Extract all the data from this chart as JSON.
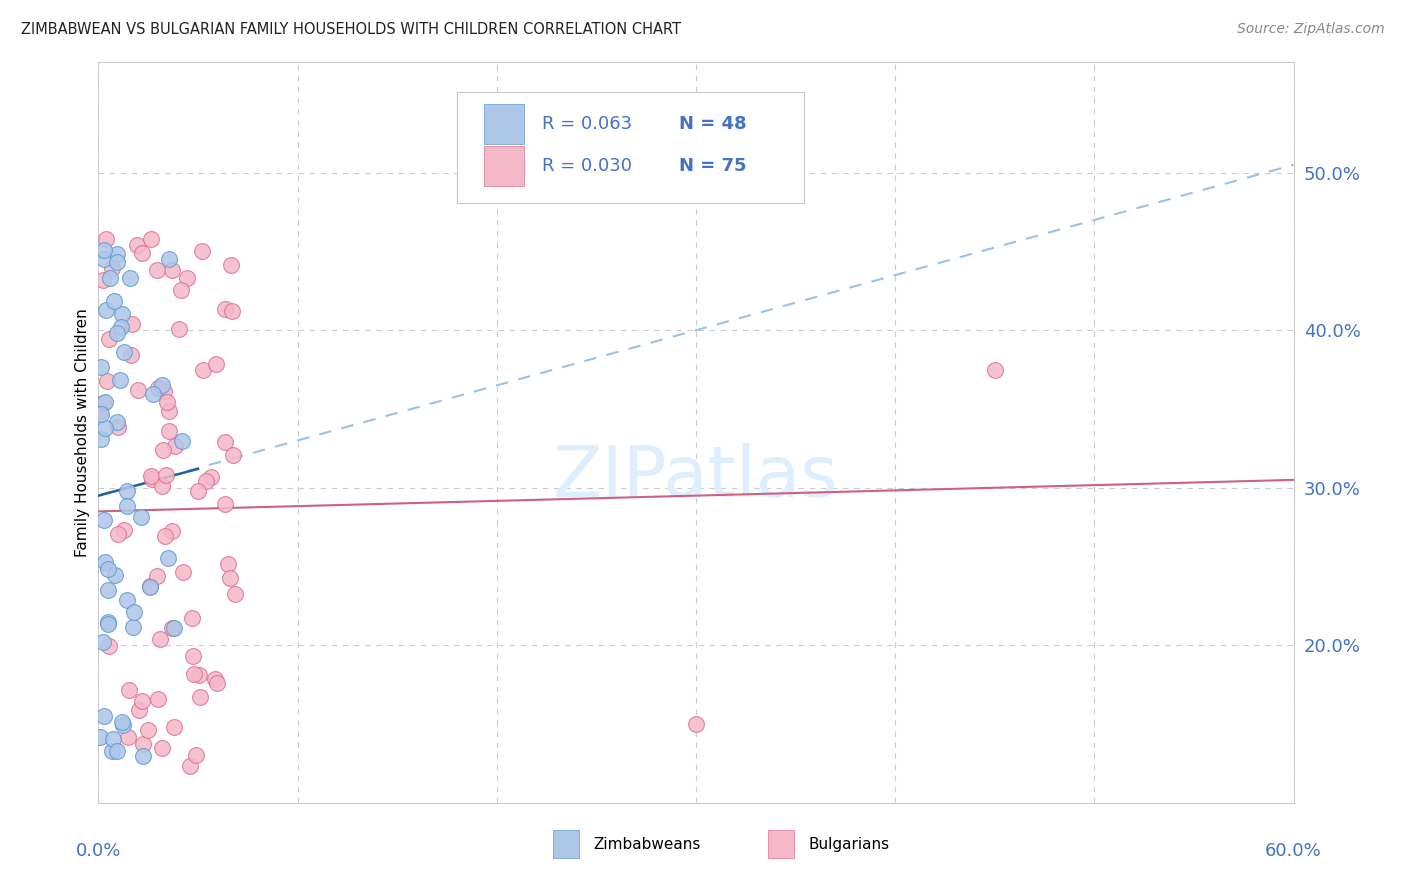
{
  "title": "ZIMBABWEAN VS BULGARIAN FAMILY HOUSEHOLDS WITH CHILDREN CORRELATION CHART",
  "source": "Source: ZipAtlas.com",
  "ylabel": "Family Households with Children",
  "zim_color": "#aec6e8",
  "zim_edge_color": "#5b9bd5",
  "bul_color": "#f4b8c8",
  "bul_edge_color": "#e07090",
  "trend_zim_dash_color": "#a0c0e0",
  "trend_zim_solid_color": "#2060a0",
  "trend_bul_color": "#d06080",
  "watermark_color": "#ddeeff",
  "legend_text_color": "#4472C4",
  "grid_color": "#cccccc",
  "title_color": "#222222",
  "source_color": "#888888",
  "zim_R": "R = 0.063",
  "zim_N": "N = 48",
  "bul_R": "R = 0.030",
  "bul_N": "N = 75",
  "xlim": [
    0,
    60
  ],
  "ylim": [
    10,
    57
  ],
  "yticks": [
    20,
    30,
    40,
    50
  ],
  "xtick_labels": [
    "0.0%",
    "60.0%"
  ],
  "ytick_labels": [
    "20.0%",
    "30.0%",
    "40.0%",
    "50.0%"
  ],
  "zim_trend_x": [
    0,
    60
  ],
  "zim_trend_y": [
    29.5,
    50.5
  ],
  "bul_trend_x": [
    0,
    60
  ],
  "bul_trend_y": [
    28.5,
    30.5
  ],
  "zim_solid_trend_x": [
    0,
    5
  ],
  "zim_solid_trend_y": [
    29.5,
    31.2
  ]
}
